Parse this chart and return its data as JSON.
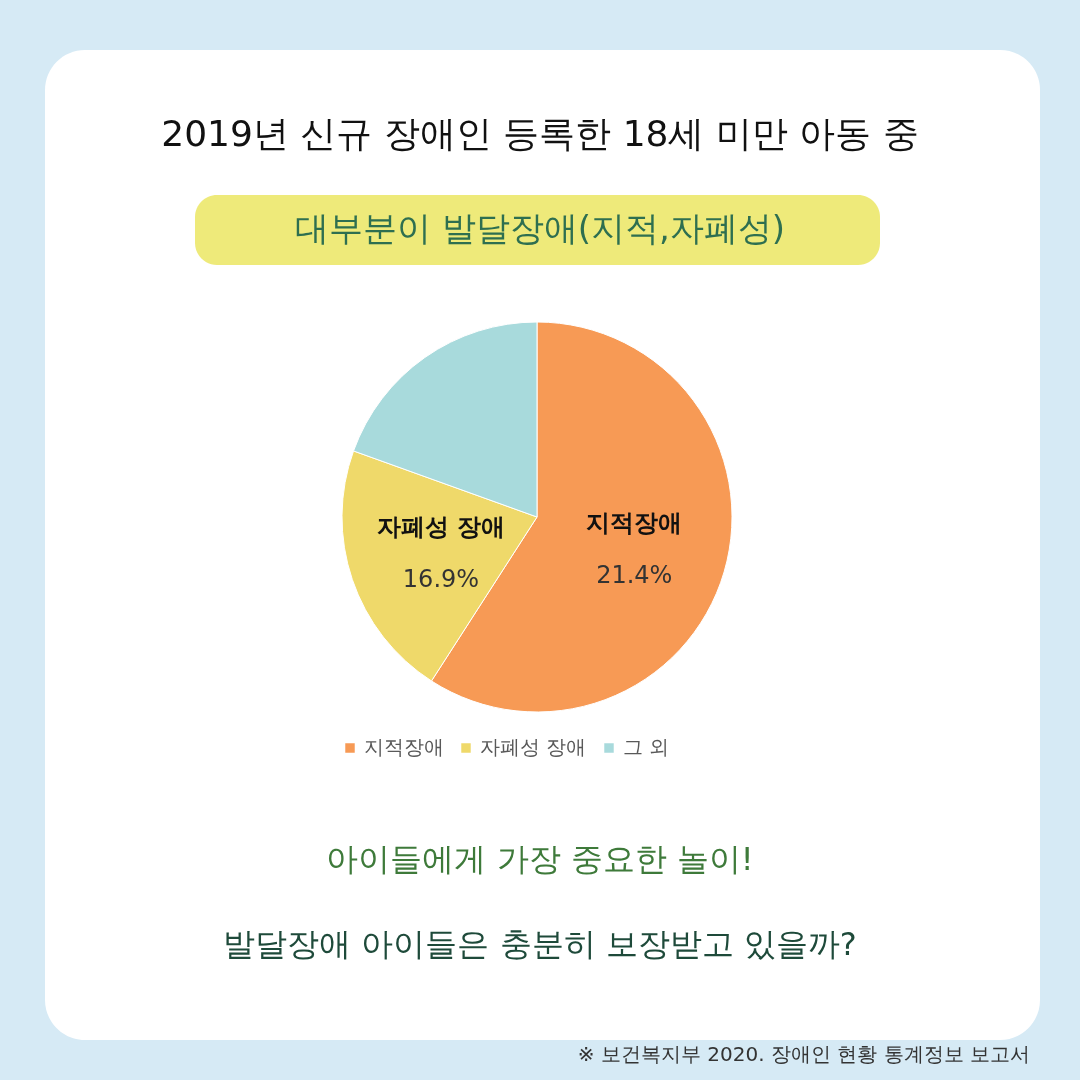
{
  "chart_data": {
    "type": "pie",
    "title": "2019년 신규 장애인 등록한 18세 미만 아동 중",
    "subtitle": "대부분이 발달장애(지적,자폐성)",
    "categories": [
      "지적장애",
      "자폐성 장애",
      "그 외"
    ],
    "values": [
      59.1,
      21.4,
      19.5
    ],
    "colors": [
      "#f79a55",
      "#efd96a",
      "#a8dadc"
    ],
    "legend": "bottom",
    "annotations": [
      "21.4%",
      "16.9%",
      "아이들에게 가장 중요한 놀이!",
      "발달장애 아이들은 충분히 보장받고 있을까?",
      "※ 보건복지부 2020. 장애인 현황 통계정보 보고서"
    ]
  }
}
